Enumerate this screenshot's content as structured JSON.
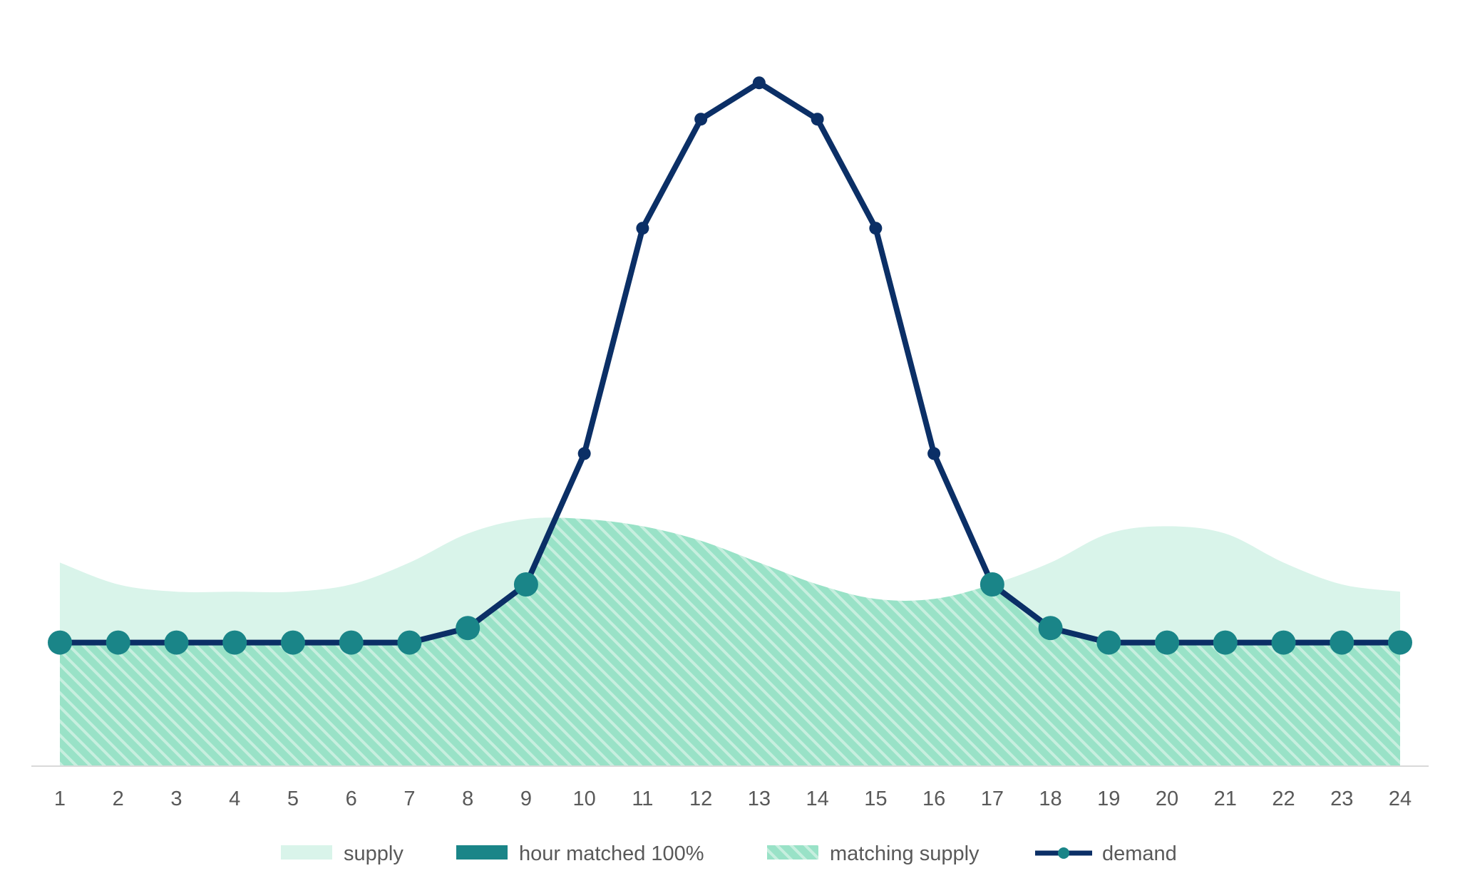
{
  "chart_data": {
    "type": "area",
    "title": "",
    "xlabel": "",
    "ylabel": "",
    "categories": [
      "1",
      "2",
      "3",
      "4",
      "5",
      "6",
      "7",
      "8",
      "9",
      "10",
      "11",
      "12",
      "13",
      "14",
      "15",
      "16",
      "17",
      "18",
      "19",
      "20",
      "21",
      "22",
      "23",
      "24"
    ],
    "ylim": [
      0,
      100
    ],
    "grid": false,
    "legend_position": "bottom",
    "series": [
      {
        "name": "supply",
        "kind": "area",
        "color": "#d9f4ea",
        "values": [
          28,
          25,
          24,
          24,
          24,
          25,
          28,
          32,
          34,
          34,
          33,
          31,
          28,
          25,
          23,
          23,
          25,
          28,
          32,
          33,
          32,
          28,
          25,
          24
        ]
      },
      {
        "name": "demand",
        "kind": "line",
        "color": "#0b2f66",
        "values": [
          17,
          17,
          17,
          17,
          17,
          17,
          17,
          19,
          25,
          43,
          74,
          89,
          94,
          89,
          74,
          43,
          25,
          19,
          17,
          17,
          17,
          17,
          17,
          17
        ]
      },
      {
        "name": "hour matched 100%",
        "kind": "marker",
        "color": "#1a8588"
      },
      {
        "name": "matching supply",
        "kind": "hatched-area",
        "color": "#99e2c7"
      }
    ],
    "matched_hours": [
      "1",
      "2",
      "3",
      "4",
      "5",
      "6",
      "7",
      "8",
      "9",
      "17",
      "18",
      "19",
      "20",
      "21",
      "22",
      "23",
      "24"
    ],
    "legend": [
      {
        "label": "supply",
        "swatch": "fill",
        "color": "#d9f4ea"
      },
      {
        "label": "hour matched 100%",
        "swatch": "fill",
        "color": "#1a8588"
      },
      {
        "label": "matching supply",
        "swatch": "hatch",
        "color": "#99e2c7"
      },
      {
        "label": "demand",
        "swatch": "line-marker",
        "color": "#0b2f66"
      }
    ]
  }
}
